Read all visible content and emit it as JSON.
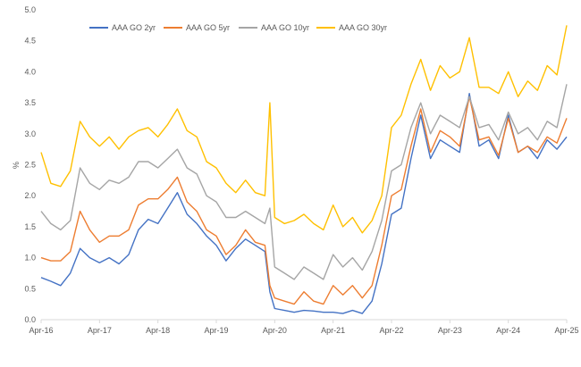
{
  "chart_data": {
    "type": "line",
    "ylabel": "%",
    "ylim": [
      0,
      5
    ],
    "yticks": [
      "0.0",
      "0.5",
      "1.0",
      "1.5",
      "2.0",
      "2.5",
      "3.0",
      "3.5",
      "4.0",
      "4.5",
      "5.0"
    ],
    "xlim": [
      "2016-04",
      "2025-04"
    ],
    "xticks": [
      "Apr-16",
      "Apr-17",
      "Apr-18",
      "Apr-19",
      "Apr-20",
      "Apr-21",
      "Apr-22",
      "Apr-23",
      "Apr-24",
      "Apr-25"
    ],
    "grid": false,
    "legend": "top",
    "x": [
      "2016-04",
      "2016-06",
      "2016-08",
      "2016-10",
      "2016-12",
      "2017-02",
      "2017-04",
      "2017-06",
      "2017-08",
      "2017-10",
      "2017-12",
      "2018-02",
      "2018-04",
      "2018-06",
      "2018-08",
      "2018-10",
      "2018-12",
      "2019-02",
      "2019-04",
      "2019-06",
      "2019-08",
      "2019-10",
      "2019-12",
      "2020-02",
      "2020-03",
      "2020-04",
      "2020-06",
      "2020-08",
      "2020-10",
      "2020-12",
      "2021-02",
      "2021-04",
      "2021-06",
      "2021-08",
      "2021-10",
      "2021-12",
      "2022-02",
      "2022-04",
      "2022-06",
      "2022-08",
      "2022-10",
      "2022-12",
      "2023-02",
      "2023-04",
      "2023-06",
      "2023-08",
      "2023-10",
      "2023-12",
      "2024-02",
      "2024-04",
      "2024-06",
      "2024-08",
      "2024-10",
      "2024-12",
      "2025-02",
      "2025-04"
    ],
    "series": [
      {
        "name": "AAA GO 2yr",
        "color": "#4472C4",
        "values": [
          0.68,
          0.62,
          0.55,
          0.75,
          1.15,
          1.0,
          0.92,
          1.0,
          0.9,
          1.05,
          1.45,
          1.62,
          1.55,
          1.8,
          2.05,
          1.7,
          1.55,
          1.35,
          1.2,
          0.95,
          1.15,
          1.3,
          1.2,
          1.1,
          0.45,
          0.18,
          0.15,
          0.12,
          0.15,
          0.14,
          0.12,
          0.12,
          0.1,
          0.15,
          0.1,
          0.3,
          0.9,
          1.7,
          1.8,
          2.6,
          3.3,
          2.6,
          2.9,
          2.8,
          2.7,
          3.65,
          2.8,
          2.9,
          2.6,
          3.3,
          2.7,
          2.8,
          2.6,
          2.9,
          2.75,
          2.95
        ]
      },
      {
        "name": "AAA GO 5yr",
        "color": "#ED7D31",
        "values": [
          1.0,
          0.95,
          0.95,
          1.1,
          1.75,
          1.45,
          1.25,
          1.35,
          1.35,
          1.45,
          1.85,
          1.95,
          1.95,
          2.1,
          2.3,
          1.9,
          1.75,
          1.45,
          1.35,
          1.05,
          1.2,
          1.45,
          1.25,
          1.2,
          0.55,
          0.35,
          0.3,
          0.25,
          0.45,
          0.3,
          0.25,
          0.55,
          0.4,
          0.55,
          0.35,
          0.55,
          1.2,
          2.0,
          2.1,
          2.8,
          3.4,
          2.7,
          3.05,
          2.95,
          2.8,
          3.6,
          2.9,
          2.95,
          2.65,
          3.25,
          2.7,
          2.8,
          2.7,
          2.95,
          2.85,
          3.25
        ]
      },
      {
        "name": "AAA GO 10yr",
        "color": "#A5A5A5",
        "values": [
          1.75,
          1.55,
          1.45,
          1.6,
          2.45,
          2.2,
          2.1,
          2.25,
          2.2,
          2.3,
          2.55,
          2.55,
          2.45,
          2.6,
          2.75,
          2.45,
          2.35,
          2.0,
          1.9,
          1.65,
          1.65,
          1.75,
          1.65,
          1.55,
          1.8,
          0.85,
          0.75,
          0.65,
          0.85,
          0.75,
          0.65,
          1.05,
          0.85,
          1.0,
          0.8,
          1.1,
          1.6,
          2.4,
          2.5,
          3.1,
          3.5,
          3.0,
          3.3,
          3.2,
          3.1,
          3.6,
          3.1,
          3.15,
          2.9,
          3.35,
          3.0,
          3.1,
          2.9,
          3.2,
          3.1,
          3.8
        ]
      },
      {
        "name": "AAA GO 30yr",
        "color": "#FFC000",
        "values": [
          2.7,
          2.2,
          2.15,
          2.4,
          3.2,
          2.95,
          2.8,
          2.95,
          2.75,
          2.95,
          3.05,
          3.1,
          2.95,
          3.15,
          3.4,
          3.05,
          2.95,
          2.55,
          2.45,
          2.2,
          2.05,
          2.25,
          2.05,
          2.0,
          3.5,
          1.65,
          1.55,
          1.6,
          1.7,
          1.55,
          1.45,
          1.85,
          1.5,
          1.65,
          1.4,
          1.6,
          2.0,
          3.1,
          3.3,
          3.8,
          4.2,
          3.7,
          4.1,
          3.9,
          4.0,
          4.55,
          3.75,
          3.75,
          3.65,
          4.0,
          3.6,
          3.85,
          3.7,
          4.1,
          3.95,
          4.75
        ]
      }
    ]
  }
}
